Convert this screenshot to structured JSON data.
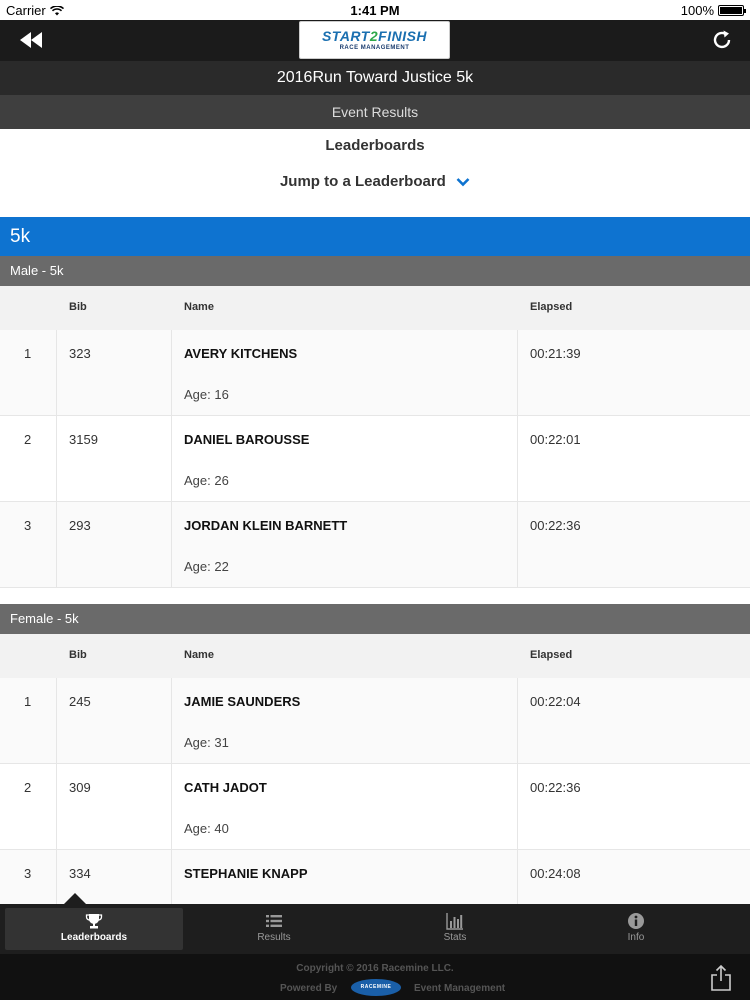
{
  "status": {
    "carrier": "Carrier",
    "time": "1:41 PM",
    "battery": "100%"
  },
  "brand": {
    "logo_main": "START",
    "logo_two": "2",
    "logo_end": "FINISH",
    "logo_sub": "RACE MANAGEMENT"
  },
  "event": {
    "title": "2016Run Toward Justice 5k",
    "section": "Event Results"
  },
  "leaderboards": {
    "heading": "Leaderboards",
    "jump_label": "Jump to a Leaderboard"
  },
  "race": {
    "name": "5k"
  },
  "columns": {
    "bib": "Bib",
    "name": "Name",
    "elapsed": "Elapsed"
  },
  "groups": [
    {
      "title": "Male - 5k",
      "rows": [
        {
          "rank": "1",
          "bib": "323",
          "name": "AVERY KITCHENS",
          "age": "Age: 16",
          "elapsed": "00:21:39"
        },
        {
          "rank": "2",
          "bib": "3159",
          "name": "DANIEL BAROUSSE",
          "age": "Age: 26",
          "elapsed": "00:22:01"
        },
        {
          "rank": "3",
          "bib": "293",
          "name": "JORDAN KLEIN BARNETT",
          "age": "Age: 22",
          "elapsed": "00:22:36"
        }
      ]
    },
    {
      "title": "Female - 5k",
      "rows": [
        {
          "rank": "1",
          "bib": "245",
          "name": "JAMIE SAUNDERS",
          "age": "Age: 31",
          "elapsed": "00:22:04"
        },
        {
          "rank": "2",
          "bib": "309",
          "name": "CATH JADOT",
          "age": "Age: 40",
          "elapsed": "00:22:36"
        },
        {
          "rank": "3",
          "bib": "334",
          "name": "STEPHANIE KNAPP",
          "age": "",
          "elapsed": "00:24:08"
        }
      ]
    }
  ],
  "tabs": [
    {
      "label": "Leaderboards",
      "icon": "trophy-icon",
      "active": true
    },
    {
      "label": "Results",
      "icon": "list-icon",
      "active": false
    },
    {
      "label": "Stats",
      "icon": "bar-chart-icon",
      "active": false
    },
    {
      "label": "Info",
      "icon": "info-icon",
      "active": false
    }
  ],
  "footer": {
    "copyright": "Copyright © 2016 Racemine LLC.",
    "powered_by": "Powered By",
    "racemine_logo": "RACEMINE",
    "event_management": "Event Management"
  },
  "colors": {
    "accent_blue": "#0e73d0",
    "group_gray": "#6a6a6a",
    "nav_dark": "#1b1b1b"
  }
}
